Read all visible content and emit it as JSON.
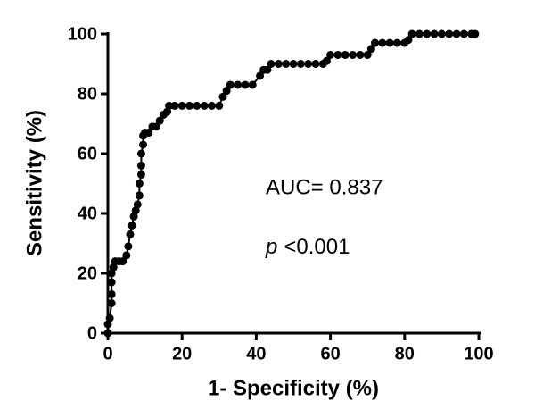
{
  "chart_data": {
    "type": "line",
    "x_label": "1- Specificity (%)",
    "y_label": "Sensitivity (%)",
    "annotation_auc": "AUC= 0.837",
    "annotation_p": {
      "symbol": "p",
      "text": "<0.001"
    },
    "x": [
      0,
      0,
      0.5,
      1,
      1,
      1,
      1,
      1.5,
      2,
      3,
      4,
      5,
      5.5,
      6,
      6.5,
      7,
      7.5,
      8,
      8.5,
      8.5,
      9,
      9,
      9,
      9.5,
      9.5,
      10,
      11,
      12,
      13,
      14,
      15,
      16,
      16.5,
      18,
      20,
      22,
      24,
      26,
      28,
      30,
      31,
      32,
      33,
      35,
      37,
      39,
      41,
      42,
      43,
      44,
      46,
      48,
      50,
      52,
      54,
      56,
      58,
      59,
      60,
      62,
      64,
      66,
      68,
      70,
      71,
      72,
      74,
      76,
      78,
      80,
      81,
      82,
      84,
      86,
      88,
      90,
      92,
      94,
      96,
      98,
      99
    ],
    "series": [
      {
        "color": "#000000",
        "values": [
          0,
          3,
          5,
          10,
          13,
          17,
          20,
          22,
          24,
          24,
          24,
          26,
          29,
          33,
          36,
          39,
          41,
          43,
          46,
          50,
          53,
          56,
          60,
          63,
          66,
          67,
          67,
          69,
          69,
          71,
          73,
          74,
          76,
          76,
          76,
          76,
          76,
          76,
          76,
          76,
          79,
          81,
          83,
          83,
          83,
          83,
          86,
          88,
          88,
          90,
          90,
          90,
          90,
          90,
          90,
          90,
          90,
          91,
          93,
          93,
          93,
          93,
          93,
          93,
          95,
          97,
          97,
          97,
          97,
          97,
          98,
          100,
          100,
          100,
          100,
          100,
          100,
          100,
          100,
          100,
          100
        ]
      }
    ],
    "xlim": [
      0,
      100
    ],
    "ylim": [
      0,
      100
    ],
    "xticks": [
      0,
      20,
      40,
      60,
      80,
      100
    ],
    "yticks": [
      0,
      20,
      40,
      60,
      80,
      100
    ]
  }
}
